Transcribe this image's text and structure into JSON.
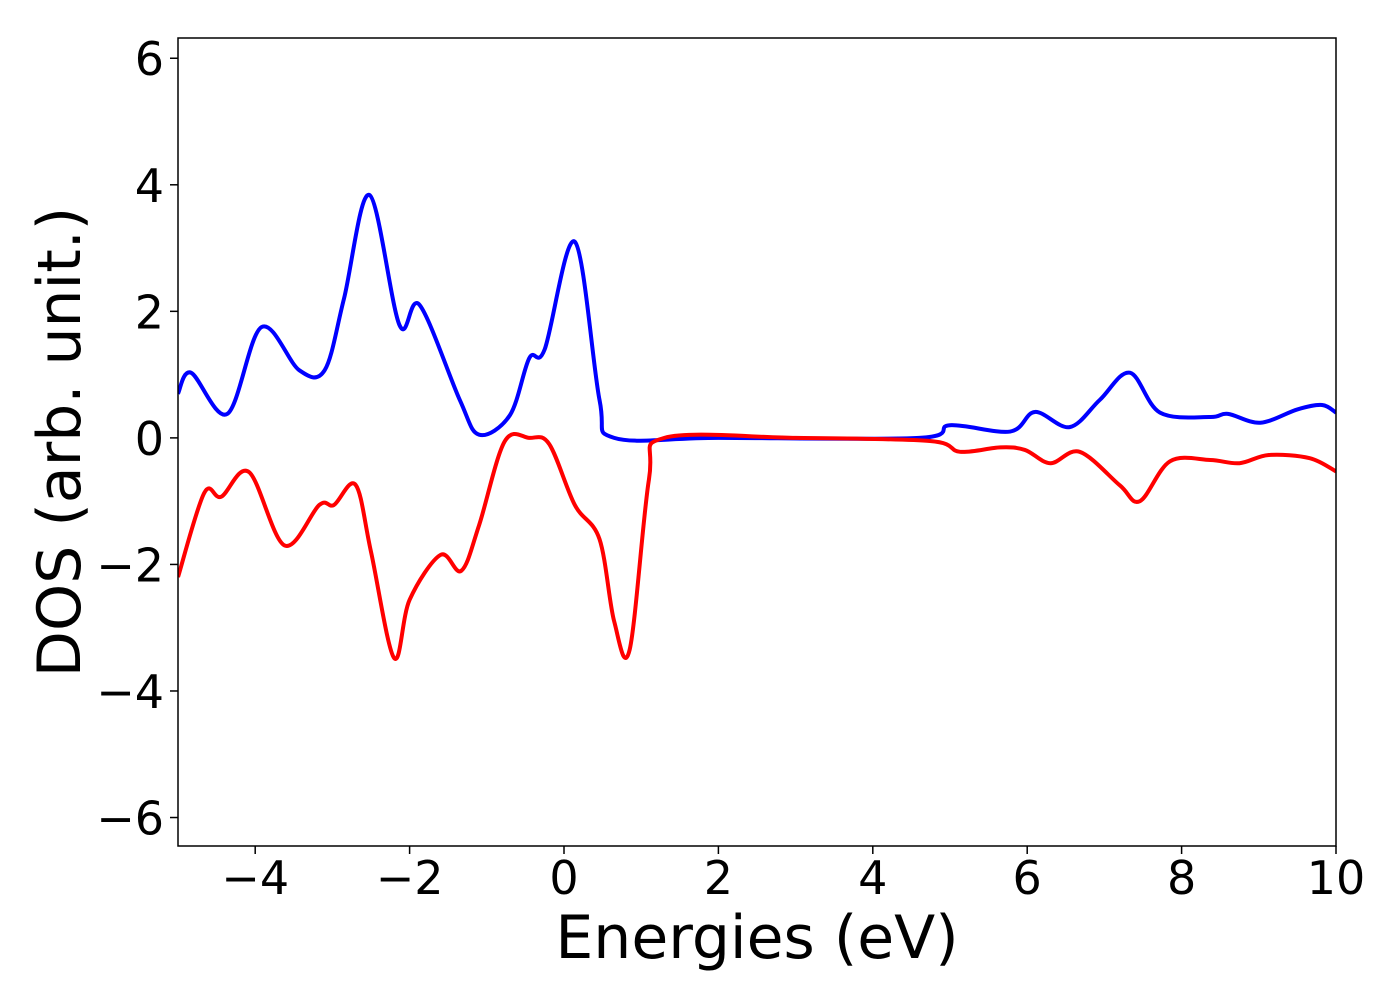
{
  "chart_data": {
    "type": "line",
    "xlabel": "Energies (eV)",
    "ylabel": "DOS (arb. unit.)",
    "xlim": [
      -5,
      10
    ],
    "ylim": [
      -6.45,
      6.32
    ],
    "xticks": [
      {
        "value": -4,
        "label": "−4"
      },
      {
        "value": -2,
        "label": "−2"
      },
      0,
      2,
      4,
      6,
      8,
      10
    ],
    "yticks": [
      {
        "value": -6,
        "label": "−6"
      },
      {
        "value": -4,
        "label": "−4"
      },
      {
        "value": -2,
        "label": "−2"
      },
      0,
      2,
      4,
      6
    ],
    "grid": false,
    "series": [
      {
        "color": "#0000ff",
        "x": [
          -5,
          -4.83,
          -4.36,
          -3.92,
          -3.43,
          -3.1,
          -2.85,
          -2.52,
          -2.13,
          -1.87,
          -1.35,
          -1.1,
          -0.7,
          -0.45,
          -0.25,
          0.14,
          0.46,
          0.65,
          2,
          4.6,
          5.0,
          5.78,
          6.1,
          6.55,
          6.94,
          7.33,
          7.72,
          8.37,
          8.6,
          9.02,
          9.5,
          9.82,
          10
        ],
        "values": [
          0.7,
          1.03,
          0.38,
          1.75,
          1.07,
          1.07,
          2.2,
          3.84,
          1.78,
          2.1,
          0.6,
          0.05,
          0.36,
          1.26,
          1.4,
          3.1,
          0.6,
          0,
          0,
          0,
          0.2,
          0.1,
          0.41,
          0.17,
          0.6,
          1.03,
          0.4,
          0.33,
          0.38,
          0.24,
          0.45,
          0.52,
          0.4
        ]
      },
      {
        "color": "#ff0000",
        "x": [
          -5,
          -4.66,
          -4.44,
          -4.08,
          -3.62,
          -3.17,
          -2.98,
          -2.7,
          -2.5,
          -2.2,
          -2.0,
          -1.6,
          -1.33,
          -1.1,
          -0.77,
          -0.45,
          -0.19,
          0.14,
          0.46,
          0.65,
          0.85,
          1.1,
          1.3,
          3,
          4.74,
          5.13,
          5.65,
          5.97,
          6.3,
          6.68,
          7.2,
          7.46,
          7.85,
          8.37,
          8.75,
          9.13,
          9.66,
          10
        ],
        "values": [
          -2.2,
          -0.87,
          -0.93,
          -0.54,
          -1.7,
          -1.06,
          -1.06,
          -0.74,
          -1.8,
          -3.48,
          -2.56,
          -1.85,
          -2.1,
          -1.38,
          -0.06,
          0,
          -0.1,
          -1.06,
          -1.6,
          -2.9,
          -3.35,
          -0.66,
          0,
          0,
          -0.05,
          -0.22,
          -0.15,
          -0.19,
          -0.4,
          -0.22,
          -0.75,
          -1.0,
          -0.37,
          -0.35,
          -0.4,
          -0.27,
          -0.32,
          -0.53
        ]
      }
    ]
  }
}
